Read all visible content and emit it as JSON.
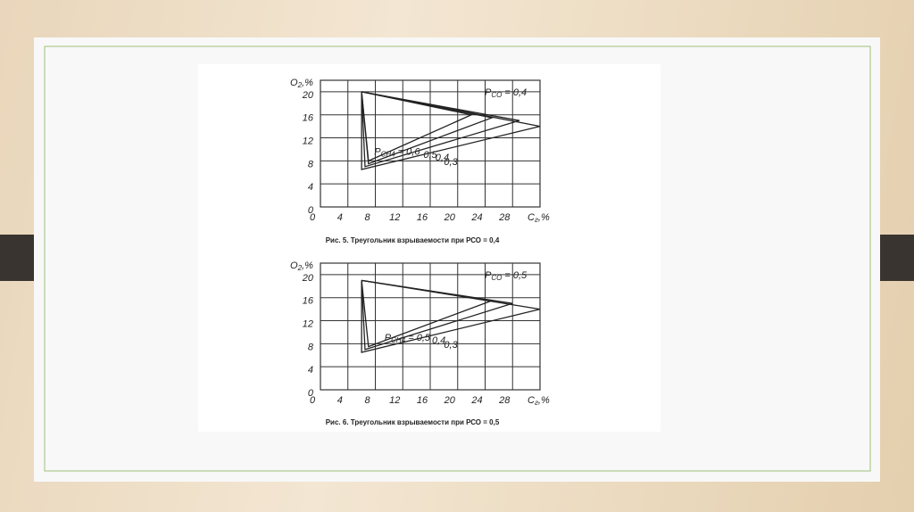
{
  "chart_data": [
    {
      "type": "line",
      "caption": "Рис. 5. Треугольник взрываемости при РСО = 0,4",
      "y_label": {
        "symbol": "O",
        "subscript": "2",
        "unit": ",%"
      },
      "x_label": {
        "symbol": "C",
        "subscript": "г",
        "unit": ",%"
      },
      "annotation": {
        "symbol": "P",
        "subscript": "CO",
        "text": " = 0,4"
      },
      "series_prefix": {
        "symbol": "P",
        "subscript": "CH4",
        "text": " = "
      },
      "xlim": [
        0,
        32
      ],
      "ylim": [
        0,
        22
      ],
      "xticks": [
        0,
        4,
        8,
        12,
        16,
        20,
        24,
        28
      ],
      "yticks": [
        0,
        4,
        8,
        12,
        16,
        20
      ],
      "grid": true,
      "series": [
        {
          "name": "0,6",
          "color": "#222",
          "x": [
            6,
            22,
            7,
            6
          ],
          "values": [
            20,
            16,
            8,
            20
          ]
        },
        {
          "name": "0,5",
          "color": "#222",
          "x": [
            6,
            25,
            7,
            6
          ],
          "values": [
            20,
            15.5,
            7.5,
            20
          ]
        },
        {
          "name": "0,4",
          "color": "#222",
          "x": [
            6,
            29,
            6.5,
            6
          ],
          "values": [
            20,
            15,
            7,
            20
          ]
        },
        {
          "name": "0,3",
          "color": "#222",
          "x": [
            6,
            32,
            6,
            6
          ],
          "values": [
            20,
            14,
            6.5,
            20
          ]
        }
      ]
    },
    {
      "type": "line",
      "caption": "Рис. 6. Треугольник взрываемости при РСО = 0,5",
      "y_label": {
        "symbol": "O",
        "subscript": "2",
        "unit": ",%"
      },
      "x_label": {
        "symbol": "C",
        "subscript": "г",
        "unit": ",%"
      },
      "annotation": {
        "symbol": "P",
        "subscript": "CO",
        "text": " = 0,5"
      },
      "series_prefix": {
        "symbol": "P",
        "subscript": "CH4",
        "text": " = "
      },
      "xlim": [
        0,
        32
      ],
      "ylim": [
        0,
        22
      ],
      "xticks": [
        0,
        4,
        8,
        12,
        16,
        20,
        24,
        28
      ],
      "yticks": [
        0,
        4,
        8,
        12,
        16,
        20
      ],
      "grid": true,
      "series": [
        {
          "name": "0,5",
          "color": "#222",
          "x": [
            6,
            25,
            7,
            6
          ],
          "values": [
            19,
            15.5,
            7.5,
            19
          ]
        },
        {
          "name": "0,4",
          "color": "#222",
          "x": [
            6,
            28,
            6.5,
            6
          ],
          "values": [
            19,
            15,
            7,
            19
          ]
        },
        {
          "name": "0,3",
          "color": "#222",
          "x": [
            6,
            32,
            6,
            6
          ],
          "values": [
            19,
            14,
            6.5,
            19
          ]
        }
      ]
    }
  ]
}
